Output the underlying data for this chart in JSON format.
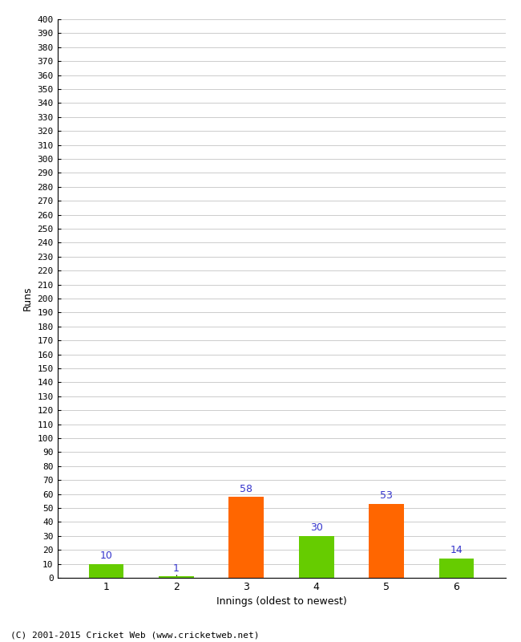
{
  "categories": [
    1,
    2,
    3,
    4,
    5,
    6
  ],
  "values": [
    10,
    1,
    58,
    30,
    53,
    14
  ],
  "bar_colors": [
    "#66cc00",
    "#66cc00",
    "#ff6600",
    "#66cc00",
    "#ff6600",
    "#66cc00"
  ],
  "xlabel": "Innings (oldest to newest)",
  "ylabel": "Runs",
  "ylim": [
    0,
    400
  ],
  "ytick_step": 10,
  "value_label_color": "#3333cc",
  "background_color": "#ffffff",
  "grid_color": "#cccccc",
  "footer": "(C) 2001-2015 Cricket Web (www.cricketweb.net)",
  "bar_width": 0.5
}
